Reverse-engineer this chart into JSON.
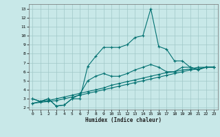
{
  "title": "",
  "xlabel": "Humidex (Indice chaleur)",
  "bg_color": "#c8e8e8",
  "grid_color": "#a0c8c8",
  "line_color": "#007070",
  "xlim": [
    -0.5,
    23.5
  ],
  "ylim": [
    1.8,
    13.5
  ],
  "xticks": [
    0,
    1,
    2,
    3,
    4,
    5,
    6,
    7,
    8,
    9,
    10,
    11,
    12,
    13,
    14,
    15,
    16,
    17,
    18,
    19,
    20,
    21,
    22,
    23
  ],
  "yticks": [
    2,
    3,
    4,
    5,
    6,
    7,
    8,
    9,
    10,
    11,
    12,
    13
  ],
  "line1_x": [
    0,
    1,
    2,
    3,
    4,
    5,
    6,
    7,
    8,
    9,
    10,
    11,
    12,
    13,
    14,
    15,
    16,
    17,
    18,
    19,
    20,
    21,
    22,
    23
  ],
  "line1_y": [
    3.0,
    2.7,
    3.0,
    2.2,
    2.3,
    3.0,
    3.0,
    6.6,
    7.7,
    8.7,
    8.7,
    8.7,
    9.0,
    9.8,
    10.0,
    13.0,
    8.8,
    8.5,
    7.2,
    7.2,
    6.5,
    6.2,
    6.5,
    6.5
  ],
  "line2_x": [
    0,
    1,
    2,
    3,
    4,
    5,
    6,
    7,
    8,
    9,
    10,
    11,
    12,
    13,
    14,
    15,
    16,
    17,
    18,
    19,
    20,
    21,
    22,
    23
  ],
  "line2_y": [
    3.0,
    2.7,
    3.0,
    2.2,
    2.3,
    3.0,
    3.5,
    5.0,
    5.5,
    5.8,
    5.5,
    5.5,
    5.8,
    6.2,
    6.5,
    6.8,
    6.5,
    6.0,
    6.0,
    6.5,
    6.5,
    6.3,
    6.5,
    6.5
  ],
  "line3_x": [
    0,
    1,
    2,
    3,
    4,
    5,
    6,
    7,
    8,
    9,
    10,
    11,
    12,
    13,
    14,
    15,
    16,
    17,
    18,
    19,
    20,
    21,
    22,
    23
  ],
  "line3_y": [
    2.5,
    2.7,
    2.8,
    3.0,
    3.2,
    3.4,
    3.6,
    3.8,
    4.0,
    4.2,
    4.5,
    4.7,
    4.9,
    5.1,
    5.3,
    5.5,
    5.7,
    5.9,
    6.0,
    6.2,
    6.3,
    6.5,
    6.5,
    6.5
  ],
  "line4_x": [
    0,
    1,
    2,
    3,
    4,
    5,
    6,
    7,
    8,
    9,
    10,
    11,
    12,
    13,
    14,
    15,
    16,
    17,
    18,
    19,
    20,
    21,
    22,
    23
  ],
  "line4_y": [
    2.5,
    2.6,
    2.7,
    2.8,
    3.0,
    3.2,
    3.4,
    3.6,
    3.8,
    4.0,
    4.2,
    4.4,
    4.6,
    4.8,
    5.0,
    5.2,
    5.4,
    5.6,
    5.8,
    6.0,
    6.2,
    6.3,
    6.5,
    6.5
  ],
  "xlabel_fontsize": 5.5,
  "tick_fontsize": 4.5
}
